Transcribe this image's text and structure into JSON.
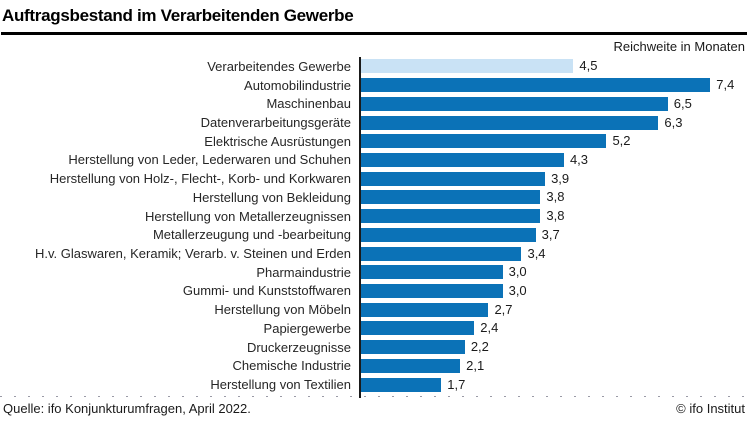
{
  "header": {
    "title": "Auftragsbestand im Verarbeitenden Gewerbe",
    "unit_label": "Reichweite in Monaten"
  },
  "chart_data": {
    "type": "bar",
    "orientation": "horizontal",
    "title": "Auftragsbestand im Verarbeitenden Gewerbe",
    "xlabel": "Reichweite in Monaten",
    "ylabel": "",
    "xlim": [
      0,
      7.4
    ],
    "grid": false,
    "legend": false,
    "categories": [
      "Verarbeitendes Gewerbe",
      "Automobilindustrie",
      "Maschinenbau",
      "Datenverarbeitungsgeräte",
      "Elektrische Ausrüstungen",
      "Herstellung von Leder, Lederwaren und Schuhen",
      "Herstellung von Holz-, Flecht-, Korb- und Korkwaren",
      "Herstellung von Bekleidung",
      "Herstellung von Metallerzeugnissen",
      "Metallerzeugung und -bearbeitung",
      "H.v. Glaswaren, Keramik; Verarb. v. Steinen und Erden",
      "Pharmaindustrie",
      "Gummi- und Kunststoffwaren",
      "Herstellung von Möbeln",
      "Papiergewerbe",
      "Druckerzeugnisse",
      "Chemische Industrie",
      "Herstellung von Textilien"
    ],
    "values": [
      4.5,
      7.4,
      6.5,
      6.3,
      5.2,
      4.3,
      3.9,
      3.8,
      3.8,
      3.7,
      3.4,
      3.0,
      3.0,
      2.7,
      2.4,
      2.2,
      2.1,
      1.7
    ],
    "value_labels": [
      "4,5",
      "7,4",
      "6,5",
      "6,3",
      "5,2",
      "4,3",
      "3,9",
      "3,8",
      "3,8",
      "3,7",
      "3,4",
      "3,0",
      "3,0",
      "2,7",
      "2,4",
      "2,2",
      "2,1",
      "1,7"
    ],
    "highlight_index": 0,
    "colors": {
      "bar": "#0b72b7",
      "highlight_bar": "#c9e2f5",
      "axis": "#1a1a1a"
    }
  },
  "footer": {
    "source": "Quelle: ifo Konjunkturumfragen, April 2022.",
    "copyright": "© ifo Institut"
  }
}
